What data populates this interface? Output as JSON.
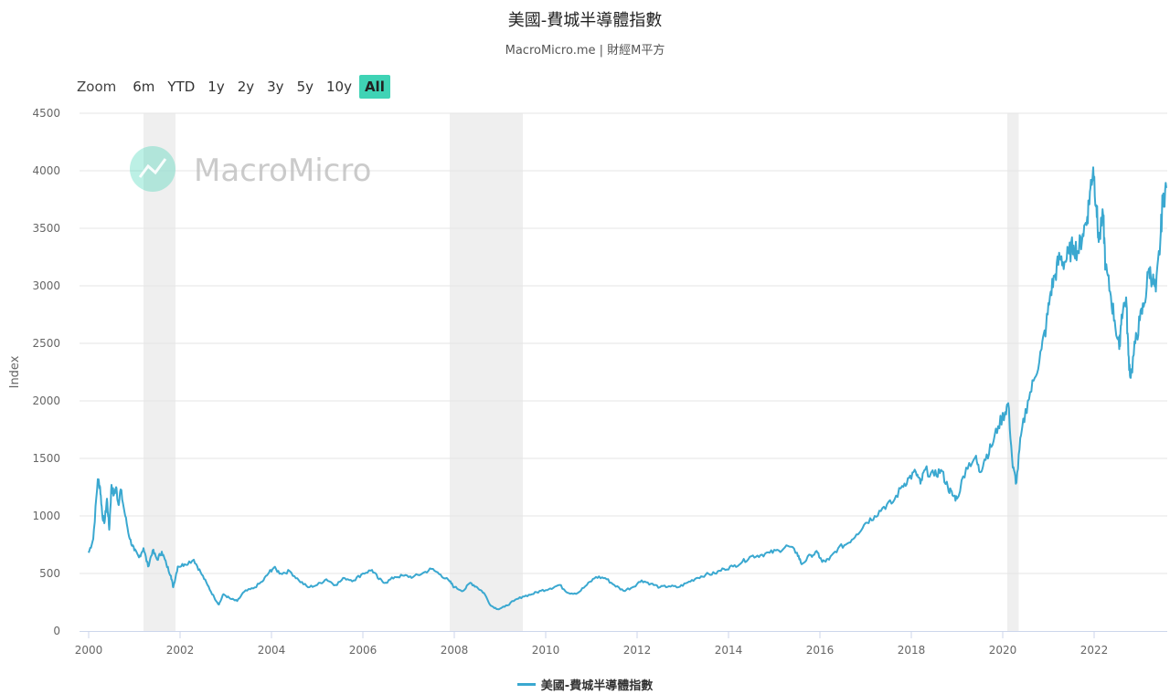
{
  "title": "美國-費城半導體指數",
  "subtitle": "MacroMicro.me | 財經M平方",
  "watermark": "MacroMicro",
  "range_selector": {
    "zoom_label": "Zoom",
    "buttons": [
      "6m",
      "YTD",
      "1y",
      "2y",
      "3y",
      "5y",
      "10y",
      "All"
    ],
    "active": "All"
  },
  "colors": {
    "series": "#3aa8d0",
    "recession": "#efefef",
    "active_button": "#3fd3b5",
    "watermark": "#3fd3b5"
  },
  "chart_data": {
    "type": "line",
    "title": "美國-費城半導體指數",
    "xlabel": "",
    "ylabel": "Index",
    "xlim": [
      2000.0,
      2023.6
    ],
    "ylim": [
      0,
      4500
    ],
    "x_ticks": [
      2000,
      2002,
      2004,
      2006,
      2008,
      2010,
      2012,
      2014,
      2016,
      2018,
      2020,
      2022
    ],
    "y_ticks": [
      0,
      500,
      1000,
      1500,
      2000,
      2500,
      3000,
      3500,
      4000,
      4500
    ],
    "grid": true,
    "legend_position": "bottom-center",
    "recession_periods": [
      [
        2001.2,
        2001.9
      ],
      [
        2007.9,
        2009.5
      ],
      [
        2020.1,
        2020.35
      ]
    ],
    "series": [
      {
        "name": "美國-費城半導體指數",
        "points": [
          [
            2000.0,
            680
          ],
          [
            2000.1,
            800
          ],
          [
            2000.2,
            1320
          ],
          [
            2000.25,
            1250
          ],
          [
            2000.3,
            1000
          ],
          [
            2000.35,
            950
          ],
          [
            2000.4,
            1150
          ],
          [
            2000.45,
            880
          ],
          [
            2000.5,
            1270
          ],
          [
            2000.55,
            1180
          ],
          [
            2000.6,
            1250
          ],
          [
            2000.65,
            1100
          ],
          [
            2000.7,
            1230
          ],
          [
            2000.8,
            1000
          ],
          [
            2000.9,
            800
          ],
          [
            2001.0,
            700
          ],
          [
            2001.1,
            640
          ],
          [
            2001.2,
            720
          ],
          [
            2001.3,
            560
          ],
          [
            2001.4,
            700
          ],
          [
            2001.5,
            620
          ],
          [
            2001.6,
            690
          ],
          [
            2001.7,
            580
          ],
          [
            2001.8,
            480
          ],
          [
            2001.85,
            380
          ],
          [
            2001.95,
            560
          ],
          [
            2002.1,
            580
          ],
          [
            2002.3,
            620
          ],
          [
            2002.45,
            510
          ],
          [
            2002.6,
            400
          ],
          [
            2002.75,
            290
          ],
          [
            2002.85,
            230
          ],
          [
            2002.95,
            320
          ],
          [
            2003.1,
            280
          ],
          [
            2003.25,
            260
          ],
          [
            2003.4,
            340
          ],
          [
            2003.6,
            370
          ],
          [
            2003.8,
            430
          ],
          [
            2003.95,
            510
          ],
          [
            2004.05,
            550
          ],
          [
            2004.2,
            500
          ],
          [
            2004.4,
            520
          ],
          [
            2004.6,
            440
          ],
          [
            2004.8,
            380
          ],
          [
            2005.0,
            400
          ],
          [
            2005.2,
            450
          ],
          [
            2005.4,
            400
          ],
          [
            2005.6,
            460
          ],
          [
            2005.8,
            440
          ],
          [
            2006.0,
            500
          ],
          [
            2006.2,
            530
          ],
          [
            2006.35,
            450
          ],
          [
            2006.5,
            420
          ],
          [
            2006.7,
            470
          ],
          [
            2006.9,
            480
          ],
          [
            2007.1,
            470
          ],
          [
            2007.3,
            500
          ],
          [
            2007.5,
            540
          ],
          [
            2007.7,
            490
          ],
          [
            2007.9,
            430
          ],
          [
            2008.0,
            380
          ],
          [
            2008.2,
            350
          ],
          [
            2008.35,
            420
          ],
          [
            2008.5,
            380
          ],
          [
            2008.65,
            330
          ],
          [
            2008.8,
            220
          ],
          [
            2008.95,
            190
          ],
          [
            2009.1,
            210
          ],
          [
            2009.3,
            260
          ],
          [
            2009.5,
            300
          ],
          [
            2009.7,
            320
          ],
          [
            2009.9,
            350
          ],
          [
            2010.1,
            370
          ],
          [
            2010.3,
            400
          ],
          [
            2010.5,
            330
          ],
          [
            2010.7,
            330
          ],
          [
            2010.9,
            400
          ],
          [
            2011.1,
            470
          ],
          [
            2011.3,
            460
          ],
          [
            2011.5,
            400
          ],
          [
            2011.7,
            350
          ],
          [
            2011.9,
            380
          ],
          [
            2012.1,
            440
          ],
          [
            2012.3,
            410
          ],
          [
            2012.5,
            380
          ],
          [
            2012.7,
            390
          ],
          [
            2012.9,
            380
          ],
          [
            2013.1,
            420
          ],
          [
            2013.3,
            460
          ],
          [
            2013.5,
            490
          ],
          [
            2013.7,
            500
          ],
          [
            2013.9,
            540
          ],
          [
            2014.1,
            560
          ],
          [
            2014.3,
            600
          ],
          [
            2014.5,
            650
          ],
          [
            2014.7,
            660
          ],
          [
            2014.9,
            680
          ],
          [
            2015.1,
            700
          ],
          [
            2015.3,
            740
          ],
          [
            2015.5,
            680
          ],
          [
            2015.6,
            580
          ],
          [
            2015.8,
            660
          ],
          [
            2015.95,
            680
          ],
          [
            2016.05,
            600
          ],
          [
            2016.2,
            620
          ],
          [
            2016.4,
            720
          ],
          [
            2016.6,
            760
          ],
          [
            2016.8,
            840
          ],
          [
            2017.0,
            940
          ],
          [
            2017.2,
            1000
          ],
          [
            2017.4,
            1080
          ],
          [
            2017.6,
            1120
          ],
          [
            2017.8,
            1260
          ],
          [
            2017.95,
            1330
          ],
          [
            2018.1,
            1380
          ],
          [
            2018.2,
            1280
          ],
          [
            2018.3,
            1400
          ],
          [
            2018.5,
            1350
          ],
          [
            2018.65,
            1400
          ],
          [
            2018.8,
            1250
          ],
          [
            2018.9,
            1180
          ],
          [
            2019.0,
            1150
          ],
          [
            2019.2,
            1420
          ],
          [
            2019.4,
            1510
          ],
          [
            2019.5,
            1380
          ],
          [
            2019.6,
            1490
          ],
          [
            2019.75,
            1600
          ],
          [
            2019.9,
            1780
          ],
          [
            2020.05,
            1900
          ],
          [
            2020.12,
            1980
          ],
          [
            2020.22,
            1420
          ],
          [
            2020.3,
            1290
          ],
          [
            2020.4,
            1700
          ],
          [
            2020.55,
            2000
          ],
          [
            2020.7,
            2200
          ],
          [
            2020.85,
            2450
          ],
          [
            2020.95,
            2650
          ],
          [
            2021.05,
            2950
          ],
          [
            2021.15,
            3100
          ],
          [
            2021.25,
            3250
          ],
          [
            2021.35,
            3200
          ],
          [
            2021.45,
            3280
          ],
          [
            2021.55,
            3350
          ],
          [
            2021.65,
            3300
          ],
          [
            2021.75,
            3450
          ],
          [
            2021.85,
            3600
          ],
          [
            2021.92,
            3850
          ],
          [
            2021.98,
            4030
          ],
          [
            2022.05,
            3700
          ],
          [
            2022.1,
            3380
          ],
          [
            2022.2,
            3600
          ],
          [
            2022.25,
            3150
          ],
          [
            2022.35,
            2950
          ],
          [
            2022.45,
            2700
          ],
          [
            2022.55,
            2450
          ],
          [
            2022.6,
            2750
          ],
          [
            2022.7,
            2900
          ],
          [
            2022.75,
            2400
          ],
          [
            2022.8,
            2200
          ],
          [
            2022.9,
            2500
          ],
          [
            2023.0,
            2700
          ],
          [
            2023.1,
            2850
          ],
          [
            2023.2,
            3150
          ],
          [
            2023.28,
            3050
          ],
          [
            2023.35,
            2950
          ],
          [
            2023.45,
            3400
          ],
          [
            2023.5,
            3750
          ],
          [
            2023.58,
            3850
          ]
        ]
      }
    ]
  }
}
